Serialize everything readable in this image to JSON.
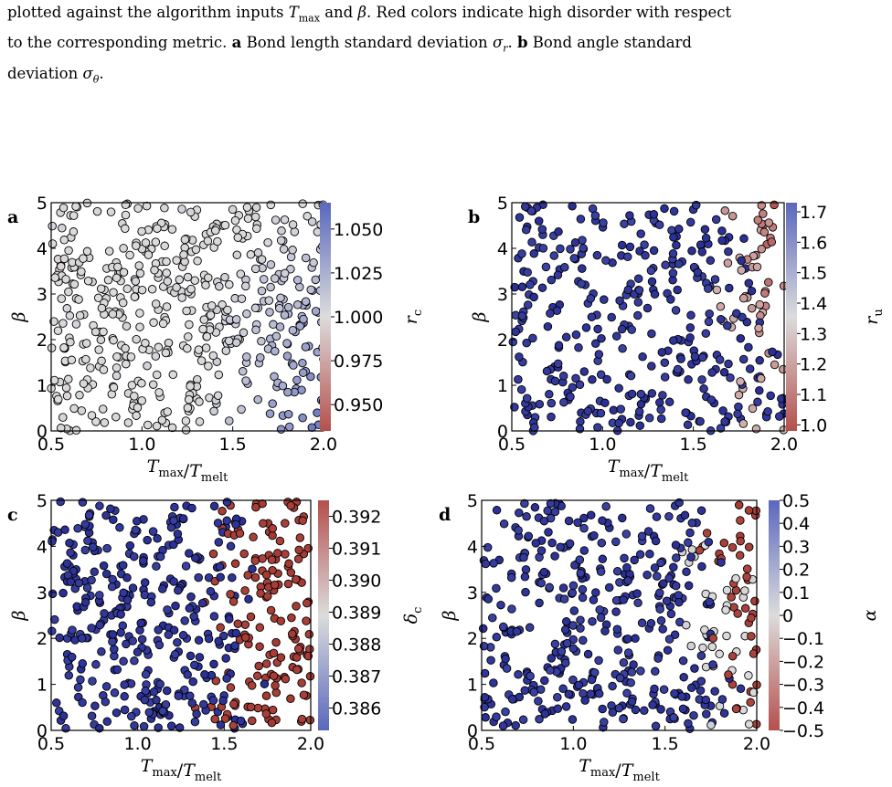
{
  "caption": {
    "line1_pre": "plotted against the algorithm inputs",
    "line1_tmax": "T",
    "line1_tmax_sub": "max",
    "line1_and": "and",
    "line1_beta": "β",
    "line1_post": ". Red colors indicate high disorder with respect",
    "line2_pre": "to the corresponding metric.",
    "line2_a": "a",
    "line2_mid": "Bond length standard deviation",
    "line2_sigma_r": "σ",
    "line2_sigma_r_sub": "r",
    "line2_dot": ".",
    "line2_b": "b",
    "line2_end": "Bond angle standard",
    "line3_pre": "deviation",
    "line3_sigma": "σ",
    "line3_sigma_sub": "θ",
    "line3_post": "."
  },
  "colors": {
    "cmap_low": "#b4504d",
    "cmap_mid": "#dcdcdc",
    "cmap_high": "#5a68bd",
    "dark_blue": "#2a2f95",
    "dark_red": "#a53a33",
    "marker_edge": "#000000"
  },
  "chart_data": [
    {
      "panel_label": "a",
      "type": "scatter",
      "xlabel": "T_max/T_melt",
      "ylabel": "β",
      "xlim": [
        0.5,
        2.0
      ],
      "ylim": [
        0,
        5
      ],
      "xticks": [
        "0.5",
        "1.0",
        "1.5",
        "2.0"
      ],
      "yticks": [
        "0",
        "1",
        "2",
        "3",
        "4",
        "5"
      ],
      "colorbar": {
        "label": "r_c",
        "range": [
          0.935,
          1.065
        ],
        "ticks": [
          "1.050",
          "1.025",
          "1.000",
          "0.975",
          "0.950"
        ],
        "tick_values": [
          1.05,
          1.025,
          1.0,
          0.975,
          0.95
        ],
        "cmap": "red-white-blue"
      },
      "n_points": 500,
      "seed": 11,
      "color_pattern": "mostly near-neutral grey; blue tint toward high T_max and low β"
    },
    {
      "panel_label": "b",
      "type": "scatter",
      "xlabel": "T_max/T_melt",
      "ylabel": "β",
      "xlim": [
        0.5,
        2.0
      ],
      "ylim": [
        0,
        5
      ],
      "xticks": [
        "0.5",
        "1.0",
        "1.5",
        "2.0"
      ],
      "yticks": [
        "0",
        "1",
        "2",
        "3",
        "4",
        "5"
      ],
      "colorbar": {
        "label": "r_u",
        "range": [
          0.98,
          1.73
        ],
        "ticks": [
          "1.7",
          "1.6",
          "1.5",
          "1.4",
          "1.3",
          "1.2",
          "1.1",
          "1.0"
        ],
        "tick_values": [
          1.7,
          1.6,
          1.5,
          1.4,
          1.3,
          1.2,
          1.1,
          1.0
        ],
        "cmap": "red-white-blue"
      },
      "n_points": 400,
      "seed": 23,
      "color_pattern": "mostly dark blue; red toward high T_max and high β"
    },
    {
      "panel_label": "c",
      "type": "scatter",
      "xlabel": "T_max/T_melt",
      "ylabel": "β",
      "xlim": [
        0.5,
        2.0
      ],
      "ylim": [
        0,
        5
      ],
      "xticks": [
        "0.5",
        "1.0",
        "1.5",
        "2.0"
      ],
      "yticks": [
        "0",
        "1",
        "2",
        "3",
        "4",
        "5"
      ],
      "colorbar": {
        "label": "δ_c",
        "range": [
          0.3853,
          0.3925
        ],
        "ticks": [
          "0.392",
          "0.391",
          "0.390",
          "0.389",
          "0.388",
          "0.387",
          "0.386"
        ],
        "tick_values": [
          0.392,
          0.391,
          0.39,
          0.389,
          0.388,
          0.387,
          0.386
        ],
        "cmap": "blue-white-red"
      },
      "n_points": 500,
      "seed": 37,
      "color_pattern": "dark blue at low T_max; dark red at high T_max"
    },
    {
      "panel_label": "d",
      "type": "scatter",
      "xlabel": "T_max/T_melt",
      "ylabel": "β",
      "xlim": [
        0.5,
        2.0
      ],
      "ylim": [
        0,
        5
      ],
      "xticks": [
        "0.5",
        "1.0",
        "1.5",
        "2.0"
      ],
      "yticks": [
        "0",
        "1",
        "2",
        "3",
        "4",
        "5"
      ],
      "colorbar": {
        "label": "α",
        "range": [
          -0.5,
          0.5
        ],
        "ticks": [
          "0.5",
          "0.4",
          "0.3",
          "0.2",
          "0.1",
          "0",
          "−0.1",
          "−0.2",
          "−0.3",
          "−0.4",
          "−0.5"
        ],
        "tick_values": [
          0.5,
          0.4,
          0.3,
          0.2,
          0.1,
          0,
          -0.1,
          -0.2,
          -0.3,
          -0.4,
          -0.5
        ],
        "cmap": "red-white-blue"
      },
      "n_points": 450,
      "seed": 53,
      "color_pattern": "mostly dark blue; reds and greys at high T_max"
    }
  ]
}
